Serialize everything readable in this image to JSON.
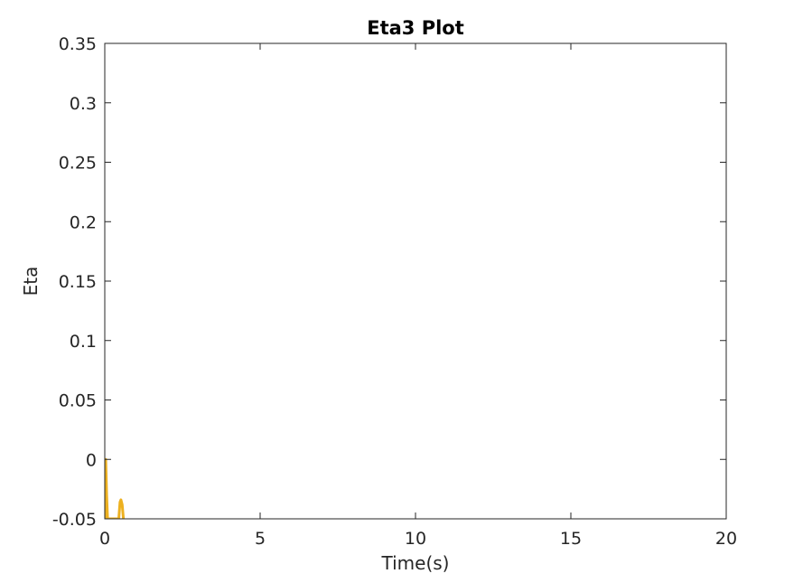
{
  "chart_data": {
    "type": "line",
    "title": "Eta3 Plot",
    "xlabel": "Time(s)",
    "ylabel": "Eta",
    "xlim": [
      0,
      20
    ],
    "ylim": [
      -0.05,
      0.35
    ],
    "grid": false,
    "xticks": [
      0,
      5,
      10,
      15,
      20
    ],
    "xtick_labels": [
      "0",
      "5",
      "10",
      "15",
      "20"
    ],
    "yticks": [
      -0.05,
      0,
      0.05,
      0.1,
      0.15,
      0.2,
      0.25,
      0.3,
      0.35
    ],
    "ytick_labels": [
      "-0.05",
      "0",
      "0.05",
      "0.1",
      "0.15",
      "0.2",
      "0.25",
      "0.3",
      "0.35"
    ],
    "series": [
      {
        "color": "#EDB120",
        "x": [
          0.0,
          0.03,
          0.06,
          0.09,
          0.45,
          0.49,
          0.52,
          0.56,
          0.6
        ],
        "y": [
          -0.05,
          0.0,
          -0.03,
          -0.05,
          -0.05,
          -0.036,
          -0.034,
          -0.038,
          -0.05
        ]
      }
    ]
  }
}
